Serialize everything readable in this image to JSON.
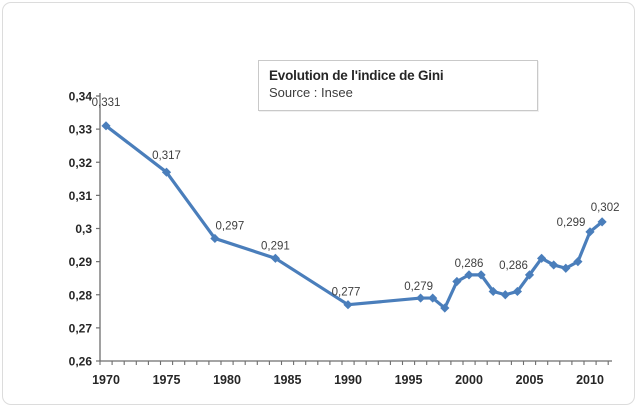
{
  "chart_data": {
    "type": "line",
    "title": "Evolution de l'indice de Gini",
    "subtitle": "Source : Insee",
    "xlabel": "",
    "ylabel": "",
    "ylim": [
      0.26,
      0.34
    ],
    "xlim": [
      1969.5,
      2011.5
    ],
    "grid": false,
    "legend_position": "none",
    "line_color": "#4a7ebb",
    "marker": "diamond",
    "axis_color": "#6e6e6e",
    "tick_label_color": "#262626",
    "data_label_color": "#3f3f3f",
    "y_ticks": [
      {
        "value": 0.26,
        "label": "0,26"
      },
      {
        "value": 0.27,
        "label": "0,27"
      },
      {
        "value": 0.28,
        "label": "0,28"
      },
      {
        "value": 0.29,
        "label": "0,29"
      },
      {
        "value": 0.3,
        "label": "0,3"
      },
      {
        "value": 0.31,
        "label": "0,31"
      },
      {
        "value": 0.32,
        "label": "0,32"
      },
      {
        "value": 0.33,
        "label": "0,33"
      },
      {
        "value": 0.34,
        "label": "0,34"
      }
    ],
    "x_ticks": [
      {
        "value": 1970,
        "label": "1970"
      },
      {
        "value": 1975,
        "label": "1975"
      },
      {
        "value": 1980,
        "label": "1980"
      },
      {
        "value": 1985,
        "label": "1985"
      },
      {
        "value": 1990,
        "label": "1990"
      },
      {
        "value": 1995,
        "label": "1995"
      },
      {
        "value": 2000,
        "label": "2000"
      },
      {
        "value": 2005,
        "label": "2005"
      },
      {
        "value": 2010,
        "label": "2010"
      }
    ],
    "series": [
      {
        "name": "Indice de Gini",
        "points": [
          {
            "year": 1970,
            "value": 0.331,
            "label": "0,331",
            "label_dx": 0,
            "label_dy": -20
          },
          {
            "year": 1975,
            "value": 0.317,
            "label": "0,317",
            "label_dx": 0,
            "label_dy": -13
          },
          {
            "year": 1979,
            "value": 0.297,
            "label": "0,297",
            "label_dx": 15,
            "label_dy": -9
          },
          {
            "year": 1984,
            "value": 0.291,
            "label": "0,291",
            "label_dx": 0,
            "label_dy": -9
          },
          {
            "year": 1990,
            "value": 0.277,
            "label": "0,277",
            "label_dx": -2,
            "label_dy": -9
          },
          {
            "year": 1996,
            "value": 0.279,
            "label": "0,279",
            "label_dx": -2,
            "label_dy": -8
          },
          {
            "year": 1997,
            "value": 0.279
          },
          {
            "year": 1998,
            "value": 0.276
          },
          {
            "year": 1999,
            "value": 0.284
          },
          {
            "year": 2000,
            "value": 0.286,
            "label": "0,286",
            "label_dx": 0,
            "label_dy": -8
          },
          {
            "year": 2001,
            "value": 0.286
          },
          {
            "year": 2002,
            "value": 0.281
          },
          {
            "year": 2003,
            "value": 0.28
          },
          {
            "year": 2004,
            "value": 0.281
          },
          {
            "year": 2005,
            "value": 0.286,
            "label": "0,286",
            "label_dx": -16,
            "label_dy": -6
          },
          {
            "year": 2006,
            "value": 0.291
          },
          {
            "year": 2007,
            "value": 0.289
          },
          {
            "year": 2008,
            "value": 0.288
          },
          {
            "year": 2009,
            "value": 0.29
          },
          {
            "year": 2010,
            "value": 0.299,
            "label": "0,299",
            "label_dx": -19,
            "label_dy": -6
          },
          {
            "year": 2011,
            "value": 0.302,
            "label": "0,302",
            "label_dx": 3,
            "label_dy": -11
          }
        ]
      }
    ]
  }
}
